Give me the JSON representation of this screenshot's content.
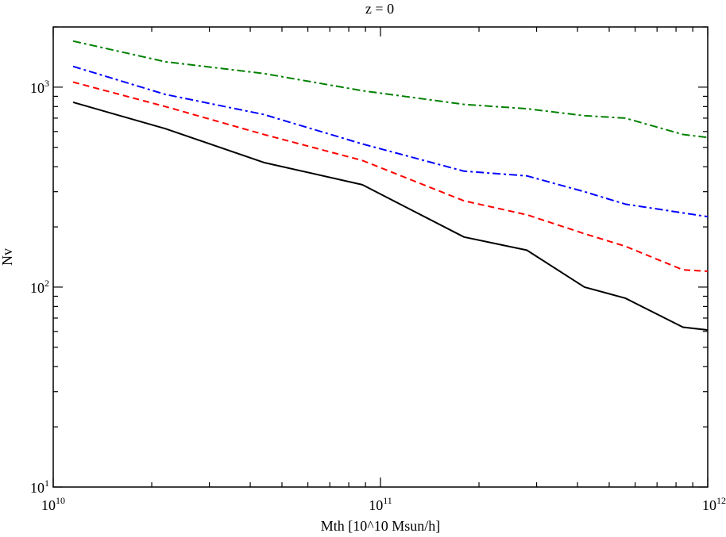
{
  "chart_data": {
    "type": "line",
    "title": "z = 0",
    "xlabel": "Mth [10^10 Msun/h]",
    "ylabel": "Nv",
    "xscale": "log",
    "yscale": "log",
    "xlim": [
      10000000000,
      1000000000000
    ],
    "ylim": [
      10,
      2000
    ],
    "grid": false,
    "legend": "none",
    "x_ticks": [
      {
        "base": "10",
        "exp": "10",
        "value": 10000000000
      },
      {
        "base": "10",
        "exp": "11",
        "value": 100000000000
      },
      {
        "base": "10",
        "exp": "12",
        "value": 1000000000000
      }
    ],
    "y_ticks": [
      {
        "base": "10",
        "exp": "1",
        "value": 10
      },
      {
        "base": "10",
        "exp": "2",
        "value": 100
      },
      {
        "base": "10",
        "exp": "3",
        "value": 1000
      }
    ],
    "series": [
      {
        "color": "#000000",
        "dash": "solid",
        "points": [
          [
            11500000000,
            840
          ],
          [
            22000000000,
            620
          ],
          [
            44000000000,
            420
          ],
          [
            88000000000,
            325
          ],
          [
            180000000000,
            178
          ],
          [
            280000000000,
            153
          ],
          [
            420000000000,
            100
          ],
          [
            560000000000,
            88
          ],
          [
            840000000000,
            63
          ],
          [
            1000000000000,
            61
          ]
        ]
      },
      {
        "color": "#ff0000",
        "dash": "dashed",
        "points": [
          [
            11500000000,
            1060
          ],
          [
            22000000000,
            800
          ],
          [
            44000000000,
            580
          ],
          [
            88000000000,
            430
          ],
          [
            180000000000,
            270
          ],
          [
            280000000000,
            230
          ],
          [
            420000000000,
            185
          ],
          [
            560000000000,
            160
          ],
          [
            840000000000,
            122
          ],
          [
            1000000000000,
            120
          ]
        ]
      },
      {
        "color": "#0000ff",
        "dash": "dash-dot",
        "points": [
          [
            11500000000,
            1270
          ],
          [
            22000000000,
            920
          ],
          [
            44000000000,
            730
          ],
          [
            88000000000,
            520
          ],
          [
            180000000000,
            380
          ],
          [
            280000000000,
            360
          ],
          [
            420000000000,
            300
          ],
          [
            560000000000,
            260
          ],
          [
            840000000000,
            235
          ],
          [
            1000000000000,
            225
          ]
        ]
      },
      {
        "color": "#008000",
        "dash": "dash-dot",
        "points": [
          [
            11500000000,
            1700
          ],
          [
            22000000000,
            1340
          ],
          [
            44000000000,
            1170
          ],
          [
            88000000000,
            960
          ],
          [
            180000000000,
            820
          ],
          [
            280000000000,
            780
          ],
          [
            420000000000,
            720
          ],
          [
            560000000000,
            700
          ],
          [
            840000000000,
            580
          ],
          [
            1000000000000,
            560
          ]
        ]
      }
    ]
  }
}
